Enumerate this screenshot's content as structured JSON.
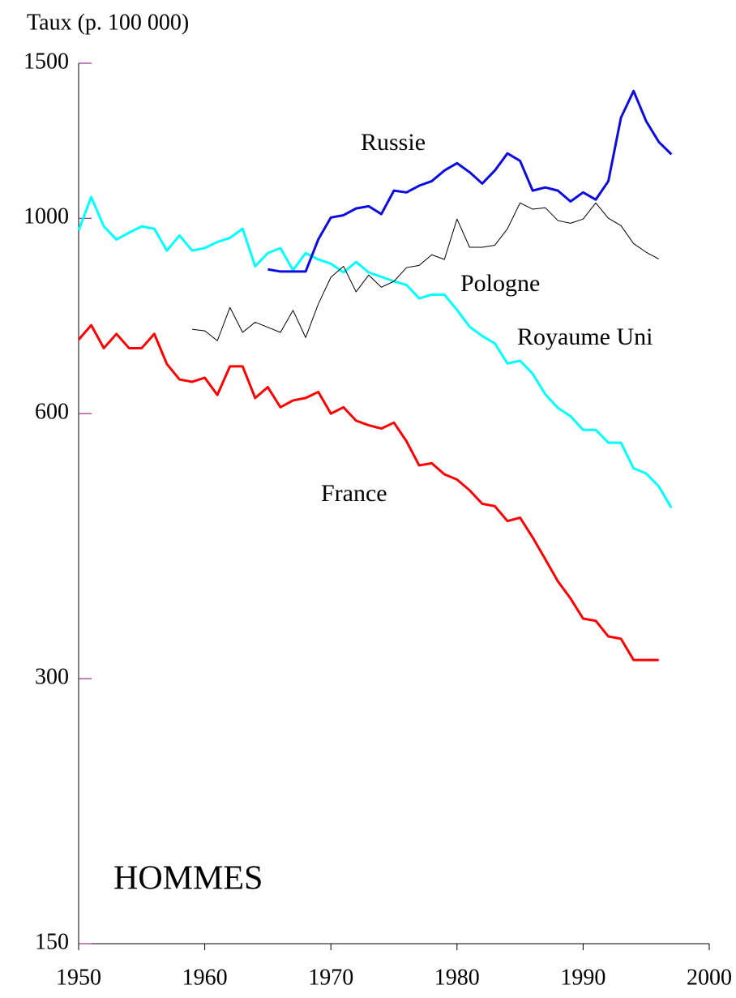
{
  "chart_data": {
    "type": "line",
    "y_label": "Taux (p. 100 000)",
    "annotations": [
      "HOMMES"
    ],
    "x": [
      1950,
      1951,
      1952,
      1953,
      1954,
      1955,
      1956,
      1957,
      1958,
      1959,
      1960,
      1961,
      1962,
      1963,
      1964,
      1965,
      1966,
      1967,
      1968,
      1969,
      1970,
      1971,
      1972,
      1973,
      1974,
      1975,
      1976,
      1977,
      1978,
      1979,
      1980,
      1981,
      1982,
      1983,
      1984,
      1985,
      1986,
      1987,
      1988,
      1989,
      1990,
      1991,
      1992,
      1993,
      1994,
      1995,
      1996,
      1997
    ],
    "series": [
      {
        "name": "France",
        "color": "#ff0000",
        "values": [
          728,
          756,
          712,
          739,
          712,
          712,
          739,
          683,
          656,
          652,
          659,
          630,
          679,
          679,
          625,
          643,
          610,
          621,
          625,
          635,
          600,
          610,
          589,
          582,
          577,
          586,
          558,
          524,
          527,
          512,
          505,
          491,
          474,
          471,
          453,
          457,
          434,
          410,
          387,
          370,
          351,
          349,
          335,
          333,
          315,
          315,
          315,
          null
        ]
      },
      {
        "name": "Royaume Uni",
        "color": "#00ffff",
        "values": [
          969,
          1057,
          979,
          946,
          963,
          979,
          973,
          919,
          956,
          919,
          925,
          940,
          950,
          973,
          882,
          913,
          925,
          873,
          913,
          898,
          888,
          868,
          892,
          868,
          858,
          848,
          840,
          811,
          819,
          819,
          787,
          753,
          735,
          721,
          684,
          689,
          666,
          631,
          609,
          596,
          575,
          575,
          556,
          556,
          520,
          513,
          496,
          469
        ]
      },
      {
        "name": "Russie",
        "color": "#0c0ce0",
        "values": [
          null,
          null,
          null,
          null,
          null,
          null,
          null,
          null,
          null,
          null,
          null,
          null,
          null,
          null,
          null,
          875,
          870,
          870,
          870,
          946,
          1002,
          1008,
          1026,
          1032,
          1011,
          1075,
          1070,
          1089,
          1102,
          1133,
          1155,
          1128,
          1095,
          1133,
          1185,
          1162,
          1075,
          1084,
          1075,
          1045,
          1070,
          1050,
          1102,
          1301,
          1395,
          1289,
          1221,
          1182
        ]
      },
      {
        "name": "Pologne",
        "color": "#000000",
        "values": [
          null,
          null,
          null,
          null,
          null,
          null,
          null,
          null,
          null,
          748,
          745,
          726,
          792,
          742,
          762,
          752,
          742,
          786,
          732,
          799,
          857,
          882,
          825,
          862,
          835,
          848,
          879,
          884,
          909,
          898,
          998,
          927,
          927,
          932,
          973,
          1041,
          1024,
          1028,
          994,
          987,
          998,
          1041,
          1000,
          981,
          936,
          915,
          899,
          null
        ]
      }
    ],
    "xlim": [
      1950,
      2000
    ],
    "xticks": [
      1950,
      1960,
      1970,
      1980,
      1990,
      2000
    ],
    "ylim": [
      150,
      1500
    ],
    "yticks": [
      150,
      300,
      600,
      1000,
      1500
    ],
    "yscale": "log"
  }
}
